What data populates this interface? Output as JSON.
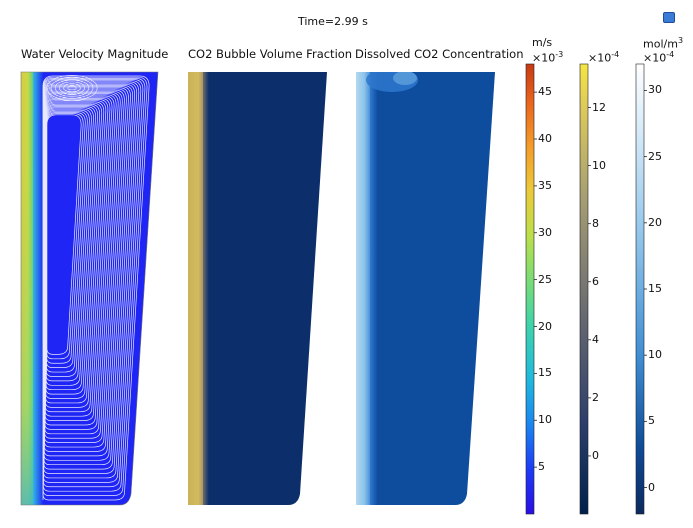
{
  "header": {
    "time_label": "Time=2.99 s"
  },
  "panels": [
    {
      "title": "Water Velocity Magnitude"
    },
    {
      "title": "CO2 Bubble Volume Fraction"
    },
    {
      "title": "Dissolved CO2 Concentration"
    }
  ],
  "colorbars": [
    {
      "unit": "m/s",
      "multiplier": "×10",
      "exponent": "-3",
      "ticks": [
        "45",
        "40",
        "35",
        "30",
        "25",
        "20",
        "15",
        "10",
        "5"
      ]
    },
    {
      "unit": "",
      "multiplier": "×10",
      "exponent": "-4",
      "ticks": [
        "12",
        "10",
        "8",
        "6",
        "4",
        "2",
        "0"
      ]
    },
    {
      "unit": "mol/m",
      "unit_exponent": "3",
      "multiplier": "×10",
      "exponent": "-4",
      "ticks": [
        "30",
        "25",
        "20",
        "15",
        "10",
        "5",
        "0"
      ]
    }
  ],
  "icons": {
    "corner": "camera-icon"
  },
  "chart_data": [
    {
      "type": "heatmap",
      "title": "Water Velocity Magnitude",
      "colorbar": {
        "unit": "m/s",
        "scale": "1e-3",
        "range": [
          0,
          48
        ],
        "ticks": [
          5,
          10,
          15,
          20,
          25,
          30,
          35,
          40,
          45
        ],
        "colormap": "turbo"
      },
      "overlay": "streamlines"
    },
    {
      "type": "heatmap",
      "title": "CO2 Bubble Volume Fraction",
      "colorbar": {
        "unit": "",
        "scale": "1e-4",
        "range": [
          -2,
          13.5
        ],
        "ticks": [
          0,
          2,
          4,
          6,
          8,
          10,
          12
        ],
        "colormap": "cividis"
      }
    },
    {
      "type": "heatmap",
      "title": "Dissolved CO2 Concentration",
      "colorbar": {
        "unit": "mol/m^3",
        "scale": "1e-4",
        "range": [
          -2,
          32
        ],
        "ticks": [
          0,
          5,
          10,
          15,
          20,
          25,
          30
        ],
        "colormap": "blues"
      }
    }
  ]
}
